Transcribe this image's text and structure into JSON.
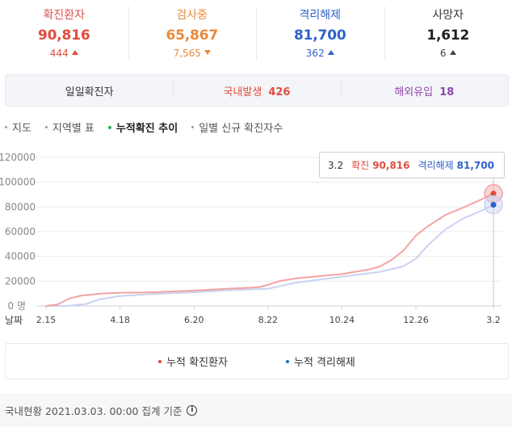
{
  "stats": [
    {
      "label": "확진환자",
      "value": "90,816",
      "change": "444",
      "direction": "up",
      "label_color": "#d9534f",
      "value_color": "#e24b3c",
      "change_color": "#e24b3c"
    },
    {
      "label": "검사중",
      "value": "65,867",
      "change": "7,565",
      "direction": "down",
      "label_color": "#e9893a",
      "value_color": "#e9893a",
      "change_color": "#e9893a"
    },
    {
      "label": "격리해제",
      "value": "81,700",
      "change": "362",
      "direction": "up",
      "label_color": "#2d62c8",
      "value_color": "#2d62c8",
      "change_color": "#2d62c8"
    },
    {
      "label": "사망자",
      "value": "1,612",
      "change": "6",
      "direction": "up",
      "label_color": "#333333",
      "value_color": "#222222",
      "change_color": "#444444"
    }
  ],
  "summary": {
    "daily": "일일확진자",
    "domestic_label": "국내발생",
    "domestic_value": "426",
    "overseas_label": "해외유입",
    "overseas_value": "18",
    "domestic_color": "#e24b3c",
    "overseas_color": "#8e44ad"
  },
  "tabs": [
    "지도",
    "지역별 표",
    "누적확진 추이",
    "일별 신규 확진자수"
  ],
  "active_tab": 2,
  "tooltip": {
    "date": "3.2",
    "confirmed_label": "확진",
    "confirmed_value": "90,816",
    "released_label": "격리해제",
    "released_value": "81,700"
  },
  "legend": {
    "confirmed": "누적 확진환자",
    "released": "누적 격리해제"
  },
  "footer": {
    "text": "국내현황 2021.03.03. 00:00 집계 기준",
    "icon": "info-icon"
  },
  "chart_data": {
    "type": "line",
    "title": "",
    "xlabel": "날짜",
    "ylabel": "",
    "ylim": [
      0,
      120000
    ],
    "yticks": [
      0,
      20000,
      40000,
      60000,
      80000,
      100000,
      120000
    ],
    "ytick_labels": [
      "0 명",
      "20000",
      "40000",
      "60000",
      "80000",
      "100000",
      "120000"
    ],
    "xlim": [
      "2020-02-15",
      "2021-03-02"
    ],
    "xticks": [
      "2020-02-15",
      "2020-04-18",
      "2020-06-20",
      "2020-08-22",
      "2020-10-24",
      "2020-12-26",
      "2021-03-02"
    ],
    "xtick_labels": [
      "2.15",
      "4.18",
      "6.20",
      "8.22",
      "10.24",
      "12.26",
      "3.2"
    ],
    "grid": true,
    "series": [
      {
        "name": "누적 확진환자",
        "color": "#f4a3a3",
        "marker_color": "#e24b3c",
        "x": [
          "2020-02-15",
          "2020-02-25",
          "2020-03-05",
          "2020-03-15",
          "2020-04-01",
          "2020-04-18",
          "2020-05-15",
          "2020-06-20",
          "2020-07-20",
          "2020-08-14",
          "2020-08-22",
          "2020-09-01",
          "2020-09-15",
          "2020-10-24",
          "2020-11-15",
          "2020-11-25",
          "2020-12-05",
          "2020-12-15",
          "2020-12-26",
          "2021-01-05",
          "2021-01-20",
          "2021-02-05",
          "2021-02-20",
          "2021-03-02"
        ],
        "values": [
          28,
          1146,
          5766,
          8162,
          9887,
          10653,
          11050,
          12373,
          13938,
          15039,
          17002,
          20182,
          22285,
          25775,
          29311,
          31735,
          36915,
          44364,
          56872,
          64264,
          73518,
          79762,
          86128,
          90816
        ]
      },
      {
        "name": "누적 격리해제",
        "color": "#c9d2f2",
        "marker_color": "#2d62c8",
        "x": [
          "2020-02-15",
          "2020-02-25",
          "2020-03-05",
          "2020-03-20",
          "2020-04-01",
          "2020-04-18",
          "2020-05-15",
          "2020-06-20",
          "2020-07-20",
          "2020-08-22",
          "2020-09-15",
          "2020-10-24",
          "2020-11-25",
          "2020-12-15",
          "2020-12-26",
          "2021-01-05",
          "2021-01-20",
          "2021-02-05",
          "2021-02-20",
          "2021-03-02"
        ],
        "values": [
          9,
          22,
          88,
          1540,
          5408,
          7937,
          9632,
          11073,
          12721,
          13901,
          18808,
          23608,
          27446,
          31814,
          38200,
          48800,
          61800,
          71000,
          77000,
          81700
        ]
      }
    ]
  }
}
